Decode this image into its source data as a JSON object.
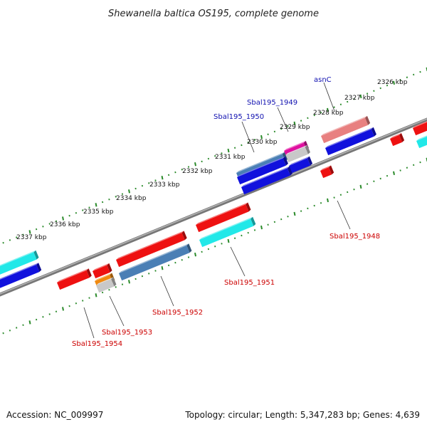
{
  "title": "Shewanella baltica OS195, complete genome",
  "footer": {
    "accession": "Accession: NC_009997",
    "summary": "Topology: circular; Length: 5,347,283 bp; Genes: 4,639"
  },
  "ruler_labels": [
    "2326 kbp",
    "2327 kbp",
    "2328 kbp",
    "2329 kbp",
    "2330 kbp",
    "2331 kbp",
    "2332 kbp",
    "2333 kbp",
    "2334 kbp",
    "2335 kbp",
    "2336 kbp",
    "2337 kbp"
  ],
  "gene_labels": {
    "forward": [
      "asnC",
      "Sbal195_1949",
      "Sbal195_1950"
    ],
    "reverse": [
      "Sbal195_1948",
      "Sbal195_1951",
      "Sbal195_1952",
      "Sbal195_1953",
      "Sbal195_1954"
    ]
  },
  "colors": {
    "forward_label": "#1010b0",
    "reverse_label": "#cc0000",
    "backbone": "#8a8a8a",
    "tick": "#2a8a2a",
    "red": "#ee1111",
    "pink": "#e88080",
    "blue": "#1111dd",
    "steelblue": "#4a7fb5",
    "cyan": "#22e8e8",
    "magenta": "#e010a0",
    "orange": "#f08a10",
    "grey": "#c8c8c8"
  }
}
